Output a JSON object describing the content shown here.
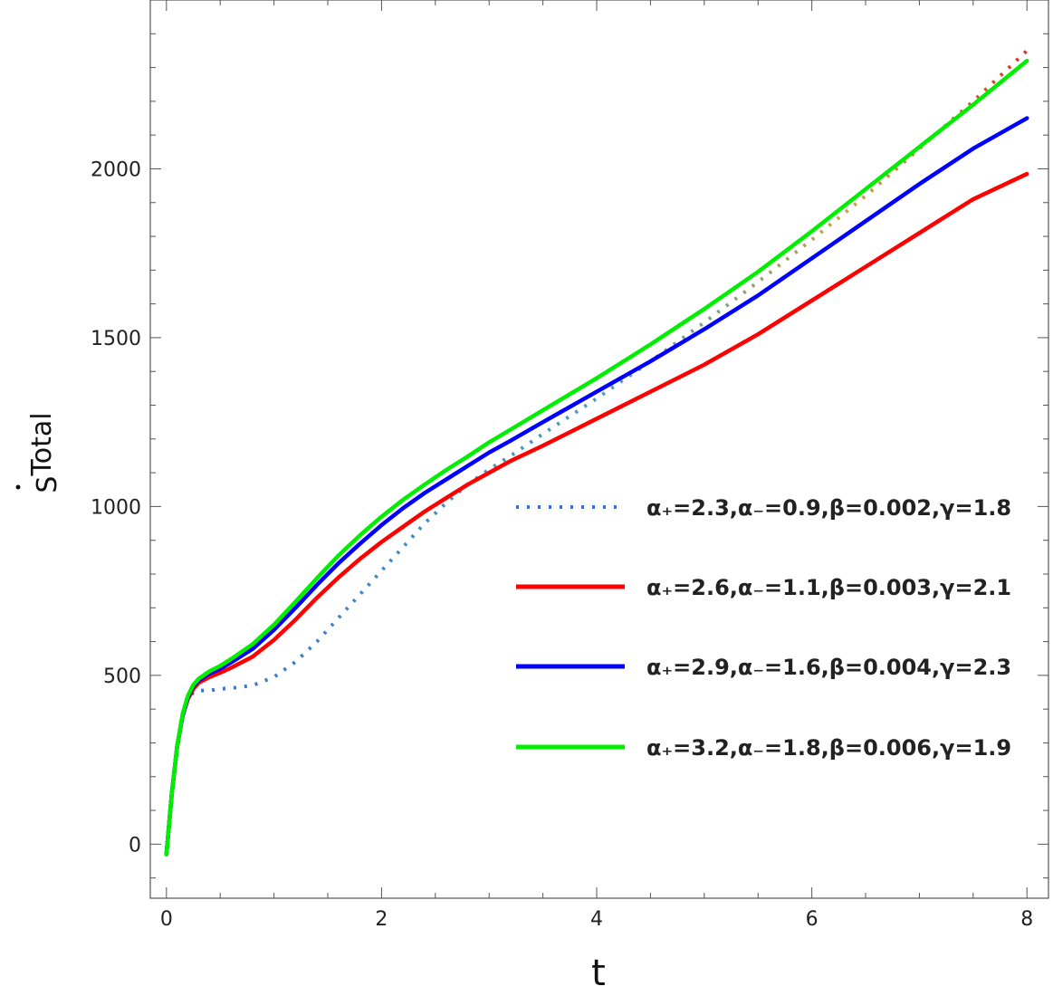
{
  "chart_data": {
    "type": "line",
    "xlabel": "t",
    "ylabel_main": "S",
    "ylabel_sub": "Total",
    "xlim": [
      -0.15,
      8.2
    ],
    "ylim": [
      -160,
      2500
    ],
    "x_ticks": [
      0,
      2,
      4,
      6,
      8
    ],
    "y_ticks": [
      0,
      500,
      1000,
      1500,
      2000
    ],
    "grid": false,
    "frame": true,
    "legend_position": "center-right",
    "series": [
      {
        "name": "α₊=2.3,α₋=0.9,β=0.002,γ=1.8",
        "style": "dotted",
        "color_stops": [
          {
            "t": 0,
            "color": "#3a6fd1"
          },
          {
            "t": 0.5,
            "color": "#4aa0b8"
          },
          {
            "t": 0.8,
            "color": "#c8a040"
          },
          {
            "t": 1,
            "color": "#e03020"
          }
        ],
        "x": [
          0,
          0.05,
          0.1,
          0.15,
          0.2,
          0.25,
          0.3,
          0.4,
          0.5,
          0.6,
          0.8,
          1.0,
          1.2,
          1.4,
          1.6,
          1.8,
          2.0,
          2.2,
          2.4,
          2.6,
          2.8,
          3.0,
          3.2,
          3.5,
          4.0,
          4.5,
          5.0,
          5.5,
          6.0,
          6.5,
          7.0,
          7.5,
          8.0
        ],
        "y": [
          -30,
          150,
          290,
          380,
          430,
          450,
          455,
          455,
          460,
          462,
          470,
          495,
          540,
          600,
          670,
          740,
          810,
          880,
          950,
          1010,
          1065,
          1110,
          1150,
          1215,
          1320,
          1430,
          1545,
          1665,
          1790,
          1920,
          2060,
          2200,
          2350
        ]
      },
      {
        "name": "α₊=2.6,α₋=1.1,β=0.003,γ=2.1",
        "style": "solid",
        "color": "#ff0000",
        "x": [
          0,
          0.05,
          0.1,
          0.15,
          0.2,
          0.25,
          0.3,
          0.4,
          0.5,
          0.6,
          0.8,
          1.0,
          1.2,
          1.4,
          1.6,
          1.8,
          2.0,
          2.2,
          2.4,
          2.6,
          2.8,
          3.0,
          3.2,
          3.5,
          4.0,
          4.5,
          5.0,
          5.5,
          6.0,
          6.5,
          7.0,
          7.5,
          8.0
        ],
        "y": [
          -30,
          150,
          290,
          380,
          430,
          460,
          478,
          495,
          508,
          522,
          555,
          605,
          665,
          730,
          790,
          845,
          895,
          940,
          985,
          1025,
          1065,
          1100,
          1135,
          1180,
          1260,
          1340,
          1420,
          1510,
          1610,
          1710,
          1810,
          1910,
          1985
        ]
      },
      {
        "name": "α₊=2.9,α₋=1.6,β=0.004,γ=2.3",
        "style": "solid",
        "color": "#0000ff",
        "x": [
          0,
          0.05,
          0.1,
          0.15,
          0.2,
          0.25,
          0.3,
          0.4,
          0.5,
          0.6,
          0.8,
          1.0,
          1.2,
          1.4,
          1.6,
          1.8,
          2.0,
          2.2,
          2.4,
          2.6,
          2.8,
          3.0,
          3.2,
          3.5,
          4.0,
          4.5,
          5.0,
          5.5,
          6.0,
          6.5,
          7.0,
          7.5,
          8.0
        ],
        "y": [
          -30,
          150,
          290,
          380,
          435,
          468,
          485,
          505,
          520,
          538,
          578,
          635,
          700,
          768,
          832,
          890,
          945,
          995,
          1040,
          1080,
          1120,
          1160,
          1195,
          1250,
          1340,
          1430,
          1525,
          1625,
          1735,
          1845,
          1955,
          2060,
          2150
        ]
      },
      {
        "name": "α₊=3.2,α₋=1.8,β=0.006,γ=1.9",
        "style": "solid",
        "color": "#00ee00",
        "x": [
          0,
          0.05,
          0.1,
          0.15,
          0.2,
          0.25,
          0.3,
          0.4,
          0.5,
          0.6,
          0.8,
          1.0,
          1.2,
          1.4,
          1.6,
          1.8,
          2.0,
          2.2,
          2.4,
          2.6,
          2.8,
          3.0,
          3.2,
          3.5,
          4.0,
          4.5,
          5.0,
          5.5,
          6.0,
          6.5,
          7.0,
          7.5,
          8.0
        ],
        "y": [
          -30,
          150,
          290,
          385,
          440,
          472,
          490,
          512,
          528,
          548,
          592,
          650,
          718,
          788,
          855,
          915,
          970,
          1020,
          1065,
          1108,
          1148,
          1190,
          1228,
          1285,
          1380,
          1480,
          1585,
          1695,
          1815,
          1940,
          2065,
          2190,
          2320
        ]
      }
    ]
  }
}
